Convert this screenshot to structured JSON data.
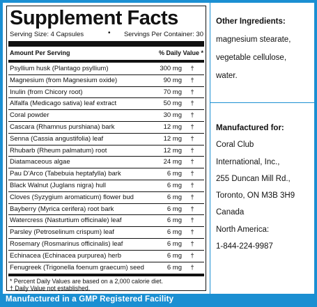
{
  "title": "Supplement Facts",
  "serving_size": "Serving Size: 4 Capsules",
  "separator_glyph": "•",
  "servings_per_container": "Servings Per Container: 30",
  "header": {
    "amount": "Amount Per Serving",
    "daily_value": "% Daily Value *"
  },
  "rows": [
    {
      "name": "Psyllium husk (Plantago psyllium)",
      "amount": "300 mg",
      "dv": "†"
    },
    {
      "name": "Magnesium (from Magnesium oxide)",
      "amount": "90 mg",
      "dv": "†"
    },
    {
      "name": "Inulin (from Chicory root)",
      "amount": "70 mg",
      "dv": "†"
    },
    {
      "name": "Alfalfa (Medicago sativa) leaf extract",
      "amount": "50 mg",
      "dv": "†"
    },
    {
      "name": "Coral powder",
      "amount": "30 mg",
      "dv": "†"
    },
    {
      "name": "Cascara (Rhamnus purshiana) bark",
      "amount": "12 mg",
      "dv": "†"
    },
    {
      "name": "Senna (Cassia angustifolia) leaf",
      "amount": "12 mg",
      "dv": "†"
    },
    {
      "name": "Rhubarb (Rheum palmatum) root",
      "amount": "12 mg",
      "dv": "†"
    },
    {
      "name": "Diatamaceous algae",
      "amount": "24 mg",
      "dv": "†"
    },
    {
      "name": "Pau D'Arco (Tabebuia heptafylla) bark",
      "amount": "6 mg",
      "dv": "†"
    },
    {
      "name": "Black Walnut (Juglans nigra) hull",
      "amount": "6 mg",
      "dv": "†"
    },
    {
      "name": "Cloves (Syzygium aromaticum) flower bud",
      "amount": "6 mg",
      "dv": "†"
    },
    {
      "name": "Bayberry (Myrica cerifera) root bark",
      "amount": "6 mg",
      "dv": "†"
    },
    {
      "name": "Watercress (Nasturtium officinale) leaf",
      "amount": "6 mg",
      "dv": "†"
    },
    {
      "name": "Parsley (Petroselinum crispum) leaf",
      "amount": "6 mg",
      "dv": "†"
    },
    {
      "name": "Rosemary (Rosmarinus officinalis) leaf",
      "amount": "6 mg",
      "dv": "†"
    },
    {
      "name": "Echinacea (Echinacea purpurea) herb",
      "amount": "6 mg",
      "dv": "†"
    },
    {
      "name": "Fenugreek (Trigonella foenum graecum) seed",
      "amount": "6 mg",
      "dv": "†"
    }
  ],
  "notes": {
    "line1": "* Percent Daily Values are based on a 2,000 calorie diet.",
    "line2": "† Daily Value not established."
  },
  "other_ingredients": {
    "heading": "Other Ingredients:",
    "lines": [
      "magnesium stearate,",
      "vegetable cellulose,",
      "water."
    ]
  },
  "manufacturer": {
    "heading": "Manufactured for:",
    "lines": [
      "Coral Club",
      "International, Inc.,",
      "255 Duncan Mill Rd.,",
      "Toronto, ON  M3B 3H9",
      "Canada",
      "North America:",
      "1-844-224-9987"
    ]
  },
  "footer": "Manufactured in a GMP Registered Facility",
  "colors": {
    "accent": "#1b8fd2",
    "text": "#111111",
    "background": "#ffffff"
  }
}
